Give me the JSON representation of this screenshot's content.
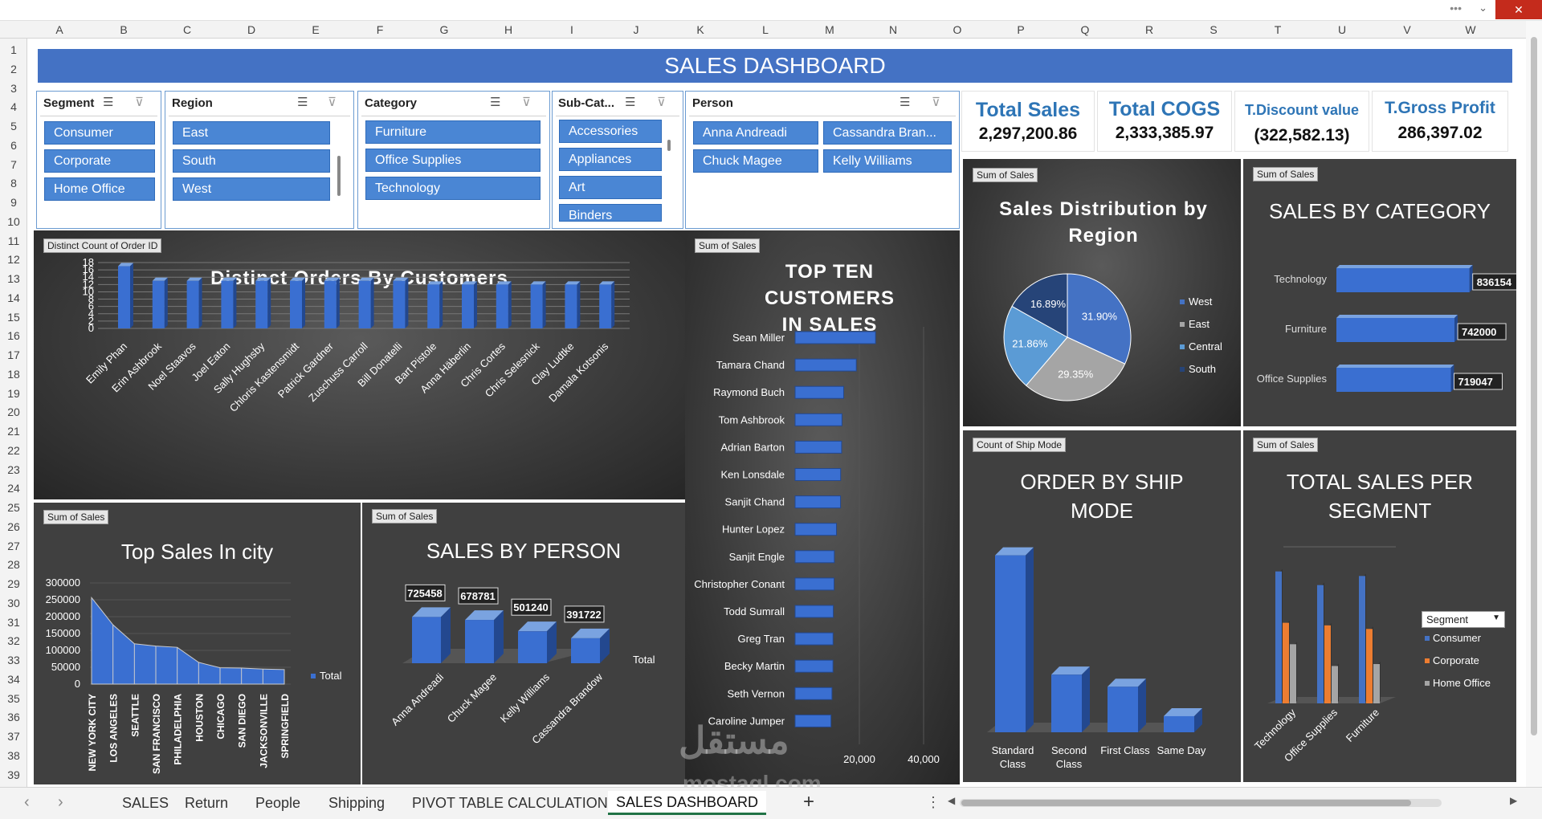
{
  "window": {
    "dots": "•••",
    "chevron": "⌄",
    "close": "✕"
  },
  "columns": [
    "A",
    "B",
    "C",
    "D",
    "E",
    "F",
    "G",
    "H",
    "I",
    "J",
    "K",
    "L",
    "M",
    "N",
    "O",
    "P",
    "Q",
    "R",
    "S",
    "T",
    "U",
    "V",
    "W"
  ],
  "rows": [
    "1",
    "2",
    "3",
    "4",
    "5",
    "6",
    "7",
    "8",
    "9",
    "10",
    "11",
    "12",
    "13",
    "14",
    "15",
    "16",
    "17",
    "18",
    "19",
    "20",
    "21",
    "22",
    "23",
    "24",
    "25",
    "26",
    "27",
    "28",
    "29",
    "30",
    "31",
    "32",
    "33",
    "34",
    "35",
    "36",
    "37",
    "38",
    "39"
  ],
  "title": "SALES DASHBOARD",
  "slicers": {
    "segment": {
      "header": "Segment",
      "items": [
        "Consumer",
        "Corporate",
        "Home Office"
      ]
    },
    "region": {
      "header": "Region",
      "items": [
        "East",
        "South",
        "West"
      ]
    },
    "category": {
      "header": "Category",
      "items": [
        "Furniture",
        "Office Supplies",
        "Technology"
      ]
    },
    "subcategory": {
      "header": "Sub-Cat...",
      "items": [
        "Accessories",
        "Appliances",
        "Art",
        "Binders"
      ]
    },
    "person": {
      "header": "Person",
      "items": [
        "Anna Andreadi",
        "Cassandra Bran...",
        "Chuck Magee",
        "Kelly Williams"
      ]
    }
  },
  "kpis": [
    {
      "label": "Total Sales",
      "value": "2,297,200.86"
    },
    {
      "label": "Total COGS",
      "value": "2,333,385.97"
    },
    {
      "label": "T.Discount value",
      "value": "(322,582.13)"
    },
    {
      "label": "T.Gross Profit",
      "value": "286,397.02"
    }
  ],
  "panels": {
    "orders": {
      "tag": "Distinct Count of Order ID",
      "title": "Distinct Orders By Customers"
    },
    "top_ten": {
      "tag": "Sum of Sales",
      "title": "TOP TEN CUSTOMERS IN SALES"
    },
    "region": {
      "tag": "Sum of Sales",
      "title": "Sales Distribution by Region"
    },
    "category": {
      "tag": "Sum of Sales",
      "title": "SALES BY CATEGORY"
    },
    "city": {
      "tag": "Sum of Sales",
      "title": "Top Sales In city"
    },
    "person": {
      "tag": "Sum of Sales",
      "title": "SALES BY PERSON"
    },
    "ship": {
      "tag": "Count of Ship Mode",
      "title": "ORDER BY SHIP MODE"
    },
    "segment": {
      "tag": "Sum of Sales",
      "title": "TOTAL SALES PER SEGMENT",
      "filter_label": "Segment"
    }
  },
  "chart_data": [
    {
      "id": "orders",
      "type": "bar",
      "categories": [
        "Emily Phan",
        "Erin Ashbrook",
        "Noel Staavos",
        "Joel Eaton",
        "Sally Hughsby",
        "Chloris Kastensmidt",
        "Patrick Gardner",
        "Zuschuss Carroll",
        "Bill Donatelli",
        "Bart Pistole",
        "Anna Häberlin",
        "Chris Cortes",
        "Chris Selesnick",
        "Clay Ludtke",
        "Damala Kotsonis"
      ],
      "values": [
        17,
        13,
        13,
        13,
        13,
        13,
        13,
        13,
        13,
        12,
        12,
        12,
        12,
        12,
        12
      ],
      "yticks": [
        "0",
        "2",
        "4",
        "6",
        "8",
        "10",
        "12",
        "14",
        "16",
        "18"
      ],
      "ylim": [
        0,
        18
      ]
    },
    {
      "id": "top_ten",
      "type": "bar",
      "categories": [
        "Sean Miller",
        "Tamara Chand",
        "Raymond Buch",
        "Tom Ashbrook",
        "Adrian Barton",
        "Ken Lonsdale",
        "Sanjit Chand",
        "Hunter Lopez",
        "Sanjit Engle",
        "Christopher Conant",
        "Todd Sumrall",
        "Greg Tran",
        "Becky Martin",
        "Seth Vernon",
        "Caroline Jumper"
      ],
      "values": [
        25043,
        19052,
        15117,
        14595,
        14474,
        14175,
        14142,
        12873,
        12209,
        12129,
        11891,
        11820,
        11790,
        11471,
        11164
      ],
      "xticks": [
        "20,000",
        "40,000"
      ],
      "xlim": [
        0,
        40000
      ]
    },
    {
      "id": "region",
      "type": "pie",
      "categories": [
        "West",
        "East",
        "Central",
        "South"
      ],
      "values": [
        31.9,
        29.35,
        21.86,
        16.89
      ],
      "labels": [
        "31.90%",
        "29.35%",
        "21.86%",
        "16.89%"
      ],
      "colors": [
        "#4472c4",
        "#a5a5a5",
        "#5b9bd5",
        "#264478"
      ]
    },
    {
      "id": "category",
      "type": "bar",
      "categories": [
        "Technology",
        "Furniture",
        "Office Supplies"
      ],
      "values": [
        836154,
        742000,
        719047
      ],
      "labels": [
        "836154",
        "742000",
        "719047"
      ]
    },
    {
      "id": "city",
      "type": "area",
      "categories": [
        "NEW YORK CITY",
        "LOS ANGELES",
        "SEATTLE",
        "SAN FRANCISCO",
        "PHILADELPHIA",
        "HOUSTON",
        "CHICAGO",
        "SAN DIEGO",
        "JACKSONVILLE",
        "SPRINGFIELD"
      ],
      "values": [
        256368,
        175851,
        119541,
        112669,
        109077,
        64505,
        48540,
        47521,
        44713,
        43054
      ],
      "yticks": [
        "0",
        "50000",
        "100000",
        "150000",
        "200000",
        "250000",
        "300000"
      ],
      "ylim": [
        0,
        300000
      ],
      "legend": "Total"
    },
    {
      "id": "person",
      "type": "bar",
      "categories": [
        "Anna Andreadi",
        "Chuck Magee",
        "Kelly Williams",
        "Cassandra Brandow"
      ],
      "values": [
        725458,
        678781,
        501240,
        391722
      ],
      "labels": [
        "725458",
        "678781",
        "501240",
        "391722"
      ],
      "legend": "Total"
    },
    {
      "id": "ship",
      "type": "bar",
      "categories": [
        "Standard Class",
        "Second Class",
        "First Class",
        "Same Day"
      ],
      "values": [
        5968,
        1945,
        1538,
        543
      ],
      "ylim": [
        0,
        6500
      ]
    },
    {
      "id": "segment",
      "type": "bar",
      "categories": [
        "Technology",
        "Office Supplies",
        "Furniture"
      ],
      "series": [
        {
          "name": "Consumer",
          "values": [
            406,
            364,
            392
          ],
          "color": "#4472c4"
        },
        {
          "name": "Corporate",
          "values": [
            248,
            240,
            229
          ],
          "color": "#ed7d31"
        },
        {
          "name": "Home Office",
          "values": [
            182,
            115,
            121
          ],
          "color": "#a5a5a5"
        }
      ],
      "ylim": [
        0,
        420
      ]
    }
  ],
  "tabs": [
    "SALES",
    "Return",
    "People",
    "Shipping",
    "PIVOT TABLE CALCULATION",
    "SALES DASHBOARD"
  ],
  "tab_nav": {
    "prev": "‹",
    "next": "›",
    "add": "+",
    "more": "⋮"
  },
  "watermark": {
    "arabic": "مستقل",
    "latin": "mostaql.com"
  }
}
